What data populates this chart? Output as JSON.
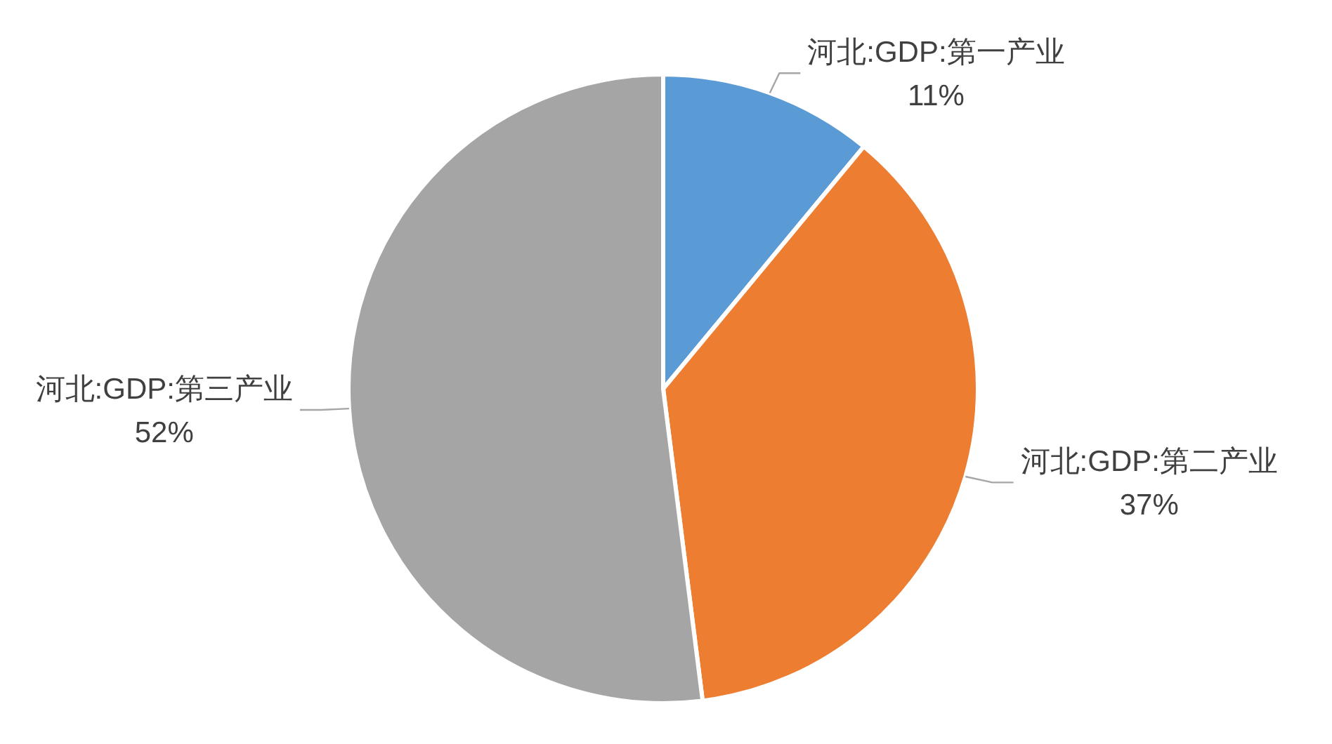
{
  "chart_data": {
    "type": "pie",
    "categories": [
      "河北:GDP:第一产业",
      "河北:GDP:第二产业",
      "河北:GDP:第三产业"
    ],
    "values": [
      11,
      37,
      52
    ],
    "colors": [
      "#5b9bd5",
      "#ed7d31",
      "#a5a5a5"
    ],
    "value_labels": [
      "11%",
      "37%",
      "52%"
    ]
  }
}
